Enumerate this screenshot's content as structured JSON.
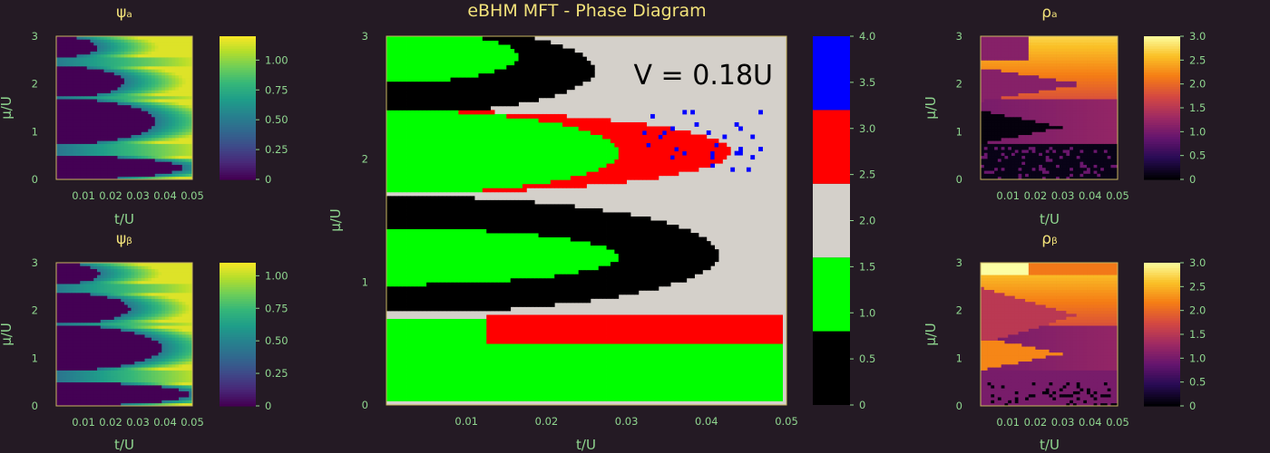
{
  "chart_data": [
    {
      "type": "heatmap",
      "title": "ψₐ",
      "xlabel": "t/U",
      "ylabel": "μ/U",
      "xlim": [
        0,
        0.05
      ],
      "ylim": [
        0,
        3
      ],
      "xticks": [
        "0.01",
        "0.02",
        "0.03",
        "0.04",
        "0.05"
      ],
      "yticks": [
        "0",
        "1",
        "2",
        "3"
      ],
      "colormap": "viridis",
      "colorbar": {
        "range": [
          0,
          1.2
        ],
        "ticks": [
          "0",
          "0.25",
          "0.50",
          "0.75",
          "1.00"
        ]
      },
      "lobes": [
        {
          "center": 0.25,
          "halfwidth": 0.25,
          "tc": 0.0465
        },
        {
          "center": 1.22,
          "halfwidth": 0.48,
          "tc": 0.0365
        },
        {
          "center": 2.05,
          "halfwidth": 0.33,
          "tc": 0.025
        },
        {
          "center": 2.78,
          "halfwidth": 0.22,
          "tc": 0.015
        }
      ]
    },
    {
      "type": "heatmap",
      "title": "ψᵦ",
      "xlabel": "t/U",
      "ylabel": "μ/U",
      "xlim": [
        0,
        0.05
      ],
      "ylim": [
        0,
        3
      ],
      "xticks": [
        "0.01",
        "0.02",
        "0.03",
        "0.04",
        "0.05"
      ],
      "yticks": [
        "0",
        "1",
        "2",
        "3"
      ],
      "colormap": "viridis",
      "colorbar": {
        "range": [
          0,
          1.1
        ],
        "ticks": [
          "0",
          "0.25",
          "0.50",
          "0.75",
          "1.00"
        ]
      },
      "lobes": [
        {
          "center": 0.25,
          "halfwidth": 0.25,
          "tc": 0.049
        },
        {
          "center": 1.22,
          "halfwidth": 0.48,
          "tc": 0.0385
        },
        {
          "center": 2.05,
          "halfwidth": 0.33,
          "tc": 0.027
        },
        {
          "center": 2.78,
          "halfwidth": 0.22,
          "tc": 0.016
        }
      ]
    },
    {
      "type": "heatmap",
      "title": "eBHM MFT - Phase Diagram",
      "xlabel": "t/U",
      "ylabel": "μ/U",
      "annotation": "V = 0.18U",
      "xlim": [
        0,
        0.05
      ],
      "ylim": [
        0,
        3
      ],
      "xticks": [
        "0.01",
        "0.02",
        "0.03",
        "0.04",
        "0.05"
      ],
      "yticks": [
        "0",
        "1",
        "2",
        "3"
      ],
      "colorbar": {
        "range": [
          0,
          4
        ],
        "ticks": [
          "0",
          "0.5",
          "1.0",
          "1.5",
          "2.0",
          "2.5",
          "3.0",
          "3.5",
          "4.0"
        ],
        "bands": [
          {
            "from": 0.0,
            "to": 0.8,
            "color": "#000000"
          },
          {
            "from": 0.8,
            "to": 1.6,
            "color": "#00ff00"
          },
          {
            "from": 1.6,
            "to": 2.4,
            "color": "#d4d0ca"
          },
          {
            "from": 2.4,
            "to": 3.2,
            "color": "#ff0000"
          },
          {
            "from": 3.2,
            "to": 4.0,
            "color": "#0000ff"
          }
        ]
      },
      "background_phase": "#d4d0ca",
      "regions": [
        {
          "phase": "#00ff00",
          "mu": [
            0.02,
            0.7
          ],
          "tmax": [
            0.0495,
            0.0495
          ],
          "shape": "rect"
        },
        {
          "phase": "#ff0000",
          "mu": [
            0.5,
            0.72
          ],
          "tmax": [
            0.0495,
            0.0495
          ],
          "tmin": [
            0.0125,
            0.0125
          ],
          "shape": "rect"
        },
        {
          "phase": "#000000",
          "mu": [
            0.75,
            1.7
          ],
          "tmax": [
            0.0415,
            0.0415
          ],
          "shape": "lobe"
        },
        {
          "phase": "#00ff00",
          "mu": [
            0.98,
            1.44
          ],
          "tmax": [
            0.029,
            0.029
          ],
          "shape": "lobe"
        },
        {
          "phase": "#ff0000",
          "mu": [
            1.72,
            2.4
          ],
          "tmax": [
            0.043,
            0.043
          ],
          "shape": "lobe"
        },
        {
          "phase": "#00ff00",
          "mu": [
            1.72,
            2.4
          ],
          "tmax": [
            0.029,
            0.029
          ],
          "shape": "lobe"
        },
        {
          "phase": "#000000",
          "mu": [
            2.4,
            3.0
          ],
          "tmax": [
            0.026,
            0.026
          ],
          "shape": "halflobe"
        },
        {
          "phase": "#00ff00",
          "mu": [
            2.64,
            3.0
          ],
          "tmax": [
            0.0165,
            0.0165
          ],
          "shape": "halflobe"
        }
      ]
    },
    {
      "type": "heatmap",
      "title": "ρₐ",
      "xlabel": "t/U",
      "ylabel": "μ/U",
      "xlim": [
        0,
        0.05
      ],
      "ylim": [
        0,
        3
      ],
      "xticks": [
        "0.01",
        "0.02",
        "0.03",
        "0.04",
        "0.05"
      ],
      "yticks": [
        "0",
        "1",
        "2",
        "3"
      ],
      "colormap": "inferno",
      "colorbar": {
        "range": [
          0,
          3.0
        ],
        "ticks": [
          "0",
          "0.5",
          "1.0",
          "1.5",
          "2.0",
          "2.5",
          "3.0"
        ]
      }
    },
    {
      "type": "heatmap",
      "title": "ρᵦ",
      "xlabel": "t/U",
      "ylabel": "μ/U",
      "xlim": [
        0,
        0.05
      ],
      "ylim": [
        0,
        3
      ],
      "xticks": [
        "0.01",
        "0.02",
        "0.03",
        "0.04",
        "0.05"
      ],
      "yticks": [
        "0",
        "1",
        "2",
        "3"
      ],
      "colormap": "inferno",
      "colorbar": {
        "range": [
          0,
          3.0
        ],
        "ticks": [
          "0",
          "0.5",
          "1.0",
          "1.5",
          "2.0",
          "2.5",
          "3.0"
        ]
      }
    }
  ],
  "colors": {
    "background": "#241a24",
    "title": "#f2e27a",
    "axis_text": "#8fd68f",
    "frame": "#c8b560"
  }
}
